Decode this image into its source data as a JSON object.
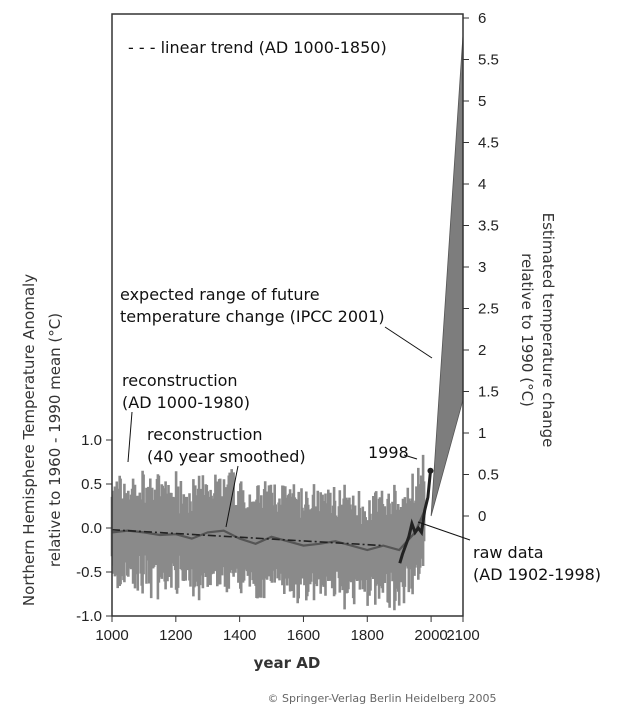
{
  "chart_data": {
    "type": "line",
    "xlabel": "year AD",
    "ylabel_left": "Northern Hemisphere Temperature Anomaly relative to 1960 - 1990 mean (°C)",
    "ylabel_right": "Estimated temperature change relative to 1990 (°C)",
    "xlim": [
      1000,
      2100
    ],
    "ylim_left": [
      -1.0,
      1.0
    ],
    "ylim_right": [
      0,
      6
    ],
    "x_ticks": [
      "1000",
      "1200",
      "1400",
      "1600",
      "1800",
      "2000",
      "2100"
    ],
    "y_ticks_left": [
      "1.0",
      "0.5",
      "0.0",
      "-0.5",
      "-1.0"
    ],
    "y_ticks_right": [
      "6",
      "5.5",
      "5",
      "4.5",
      "4",
      "3.5",
      "3",
      "2.5",
      "2",
      "1.5",
      "1",
      "0.5",
      "0"
    ],
    "legend": [
      {
        "label": "- - - linear trend (AD 1000-1850)",
        "placement": "top-left"
      }
    ],
    "annotations": {
      "future": [
        "expected range of future",
        "temperature change (IPCC 2001)"
      ],
      "recon": [
        "reconstruction",
        "(AD 1000-1980)"
      ],
      "smooth": [
        "reconstruction",
        "(40 year smoothed)"
      ],
      "year1998": "1998",
      "raw": [
        "raw data",
        "(AD 1902-1998)"
      ]
    },
    "series": [
      {
        "name": "linear trend (AD 1000-1850)",
        "style": "dash-dot",
        "x": [
          1000,
          1850
        ],
        "y": [
          -0.02,
          -0.2
        ]
      },
      {
        "name": "reconstruction (40 year smoothed)",
        "x": [
          1000,
          1050,
          1100,
          1150,
          1200,
          1250,
          1300,
          1350,
          1400,
          1450,
          1500,
          1550,
          1600,
          1650,
          1700,
          1750,
          1800,
          1850,
          1900,
          1950,
          1980
        ],
        "y": [
          -0.05,
          -0.03,
          -0.05,
          -0.08,
          -0.07,
          -0.12,
          -0.05,
          -0.03,
          -0.12,
          -0.18,
          -0.1,
          -0.15,
          -0.2,
          -0.18,
          -0.15,
          -0.2,
          -0.25,
          -0.2,
          -0.25,
          -0.05,
          0.2
        ]
      },
      {
        "name": "raw data (AD 1902-1998)",
        "x": [
          1902,
          1910,
          1920,
          1930,
          1940,
          1950,
          1960,
          1970,
          1980,
          1990,
          1998
        ],
        "y": [
          -0.4,
          -0.3,
          -0.2,
          -0.1,
          0.05,
          -0.05,
          0.0,
          -0.05,
          0.2,
          0.35,
          0.65
        ]
      },
      {
        "name": "expected range of future temperature change (IPCC 2001)",
        "type": "area",
        "x": [
          2000,
          2100
        ],
        "y_low": [
          0,
          1.4
        ],
        "y_high": [
          0,
          5.8
        ]
      }
    ],
    "colors": {
      "band": "#8a8a8a",
      "future": "#7d7d7d",
      "dark": "#222222",
      "frame": "#333333"
    },
    "grid": false
  },
  "copyright": "© Springer-Verlag Berlin Heidelberg 2005"
}
